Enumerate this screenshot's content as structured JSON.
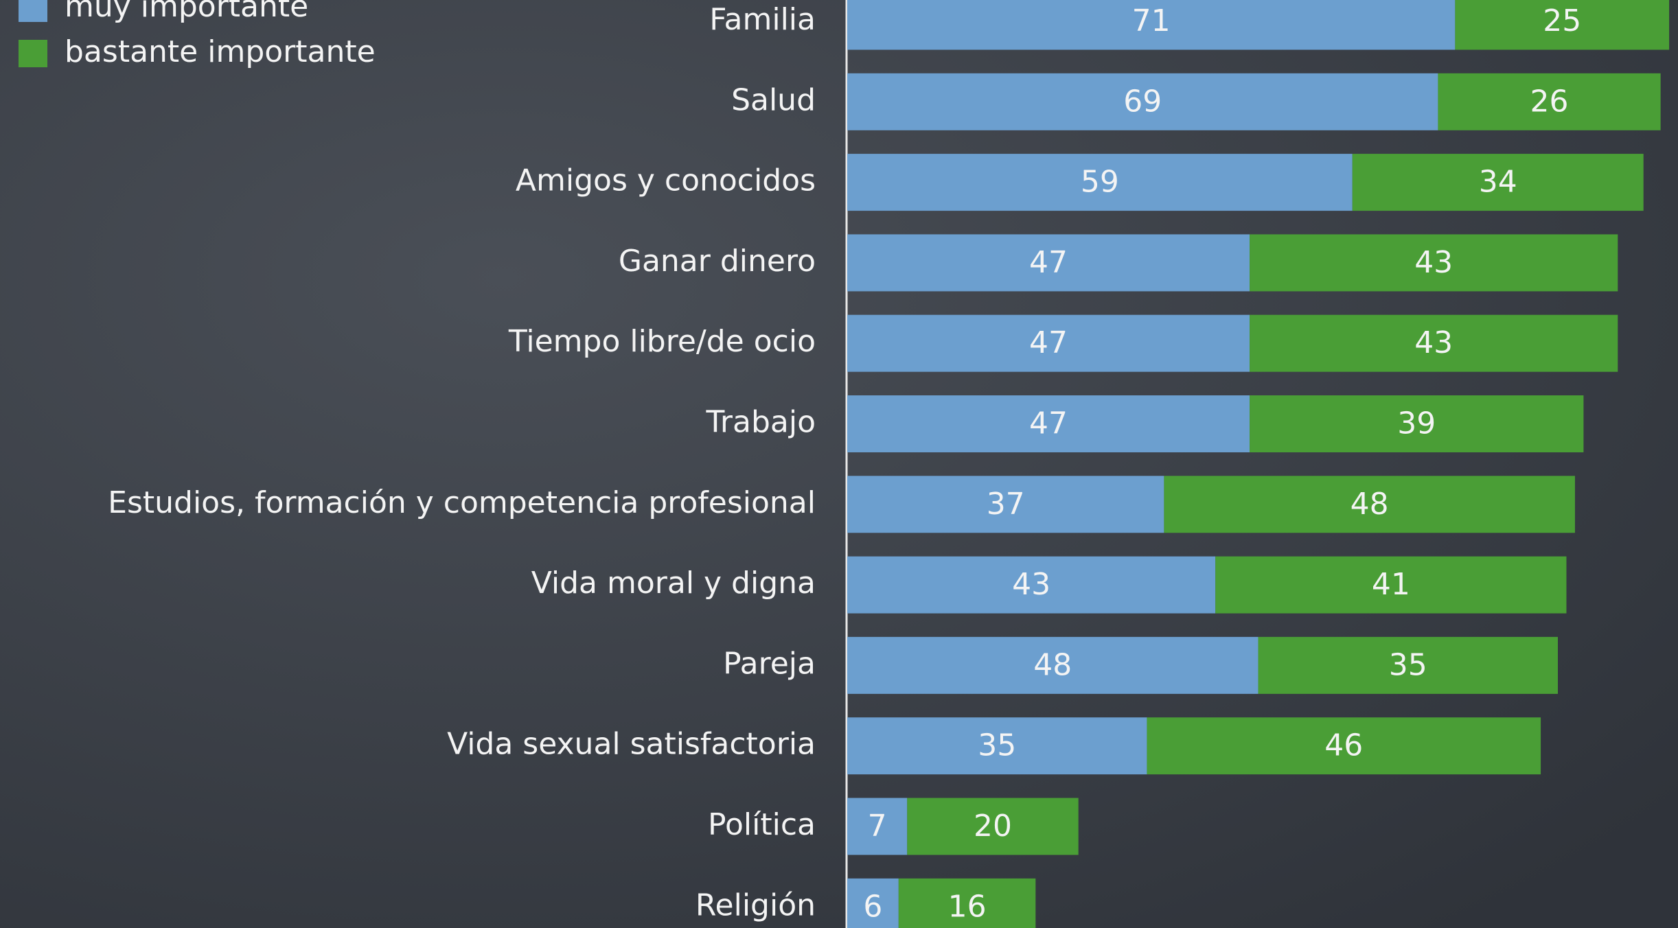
{
  "chart_data": {
    "type": "stacked-barh",
    "categories": [
      "Familia",
      "Salud",
      "Amigos y conocidos",
      "Ganar dinero",
      "Tiempo libre/de ocio",
      "Trabajo",
      "Estudios, formación y competencia profesional",
      "Vida moral y digna",
      "Pareja",
      "Vida sexual satisfactoria",
      "Política",
      "Religión"
    ],
    "series": [
      {
        "name": "muy importante",
        "color": "#6c9fcf",
        "values": [
          71,
          69,
          59,
          47,
          47,
          47,
          37,
          43,
          48,
          35,
          7,
          6
        ]
      },
      {
        "name": "bastante importante",
        "color": "#4a9e36",
        "values": [
          25,
          26,
          34,
          43,
          43,
          39,
          48,
          41,
          35,
          46,
          20,
          16
        ]
      }
    ]
  }
}
